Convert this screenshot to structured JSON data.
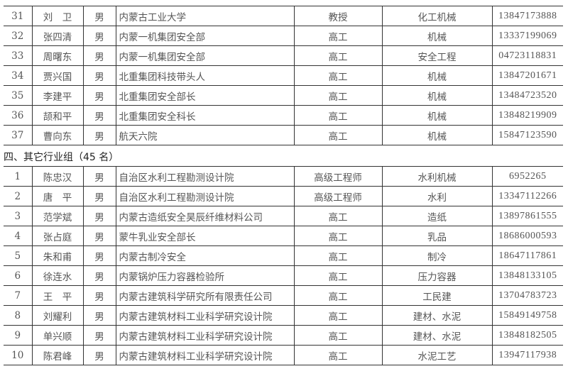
{
  "group3_rows": [
    {
      "no": "31",
      "name": "刘　卫",
      "gender": "男",
      "unit": "内蒙古工业大学",
      "title": "教授",
      "specialty": "化工机械",
      "phone": "13847173888"
    },
    {
      "no": "32",
      "name": "张四清",
      "gender": "男",
      "unit": "内蒙一机集团安全部",
      "title": "高工",
      "specialty": "机械",
      "phone": "13337199069"
    },
    {
      "no": "33",
      "name": "周曙东",
      "gender": "男",
      "unit": "内蒙一机集团安全部",
      "title": "高工",
      "specialty": "安全工程",
      "phone": "04723118831"
    },
    {
      "no": "34",
      "name": "贾兴国",
      "gender": "男",
      "unit": "北重集团科技带头人",
      "title": "高工",
      "specialty": "机械",
      "phone": "13847201671"
    },
    {
      "no": "35",
      "name": "李建平",
      "gender": "男",
      "unit": "北重集团安全部长",
      "title": "高工",
      "specialty": "机械",
      "phone": "13484723520"
    },
    {
      "no": "36",
      "name": "颉和平",
      "gender": "男",
      "unit": "北重集团安全科长",
      "title": "高工",
      "specialty": "机械",
      "phone": "13848219909"
    },
    {
      "no": "37",
      "name": "曹向东",
      "gender": "男",
      "unit": "航天六院",
      "title": "高工",
      "specialty": "机械",
      "phone": "15847123590"
    }
  ],
  "section_title": "四、其它行业组（45 名）",
  "group4_rows": [
    {
      "no": "1",
      "name": "陈忠汉",
      "gender": "男",
      "unit": "自治区水利工程勘测设计院",
      "title": "高级工程师",
      "specialty": "水利机械",
      "phone": "6952265"
    },
    {
      "no": "2",
      "name": "唐　平",
      "gender": "男",
      "unit": "自治区水利工程勘测设计院",
      "title": "高级工程师",
      "specialty": "水利",
      "phone": "13347112266"
    },
    {
      "no": "3",
      "name": "范学斌",
      "gender": "男",
      "unit": "内蒙古造纸安全昊辰纤维材料公司",
      "title": "高工",
      "specialty": "造纸",
      "phone": "13897861555"
    },
    {
      "no": "4",
      "name": "张占庭",
      "gender": "男",
      "unit": "蒙牛乳业安全部长",
      "title": "高工",
      "specialty": "乳品",
      "phone": "18686000593"
    },
    {
      "no": "5",
      "name": "朱和甫",
      "gender": "男",
      "unit": "内蒙古制冷安全",
      "title": "高工",
      "specialty": "制冷",
      "phone": "18647117861"
    },
    {
      "no": "6",
      "name": "徐连水",
      "gender": "男",
      "unit": "内蒙锅炉压力容器检验所",
      "title": "高工",
      "specialty": "压力容器",
      "phone": "13848133105"
    },
    {
      "no": "7",
      "name": "王　平",
      "gender": "男",
      "unit": "内蒙古建筑科学研究所有限责任公司",
      "title": "高工",
      "specialty": "工民建",
      "phone": "13704783723"
    },
    {
      "no": "8",
      "name": "刘耀利",
      "gender": "男",
      "unit": "内蒙古建筑材料工业科学研究设计院",
      "title": "高工",
      "specialty": "建材、水泥",
      "phone": "15849149758"
    },
    {
      "no": "9",
      "name": "单兴顺",
      "gender": "男",
      "unit": "内蒙古建筑材料工业科学研究设计院",
      "title": "高工",
      "specialty": "建材、水泥",
      "phone": "13848182505"
    },
    {
      "no": "10",
      "name": "陈君峰",
      "gender": "男",
      "unit": "内蒙古建筑材料工业科学研究设计院",
      "title": "高工",
      "specialty": "水泥工艺",
      "phone": "13947117938"
    }
  ]
}
